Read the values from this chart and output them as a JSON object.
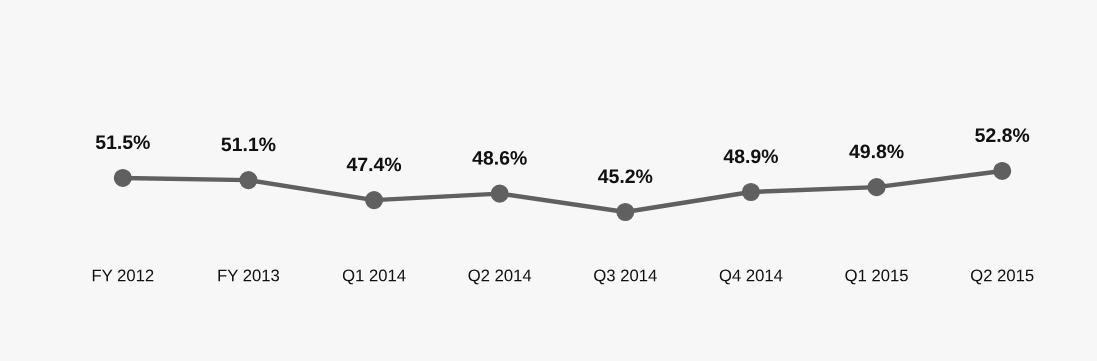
{
  "chart_data": {
    "type": "line",
    "categories": [
      "FY 2012",
      "FY 2013",
      "Q1 2014",
      "Q2 2014",
      "Q3 2014",
      "Q4 2014",
      "Q1 2015",
      "Q2 2015"
    ],
    "series": [
      {
        "color": "#606060",
        "values": [
          51.5,
          51.1,
          47.4,
          48.6,
          45.2,
          48.9,
          49.8,
          52.8
        ],
        "value_labels": [
          "51.5%",
          "51.1%",
          "47.4%",
          "48.6%",
          "45.2%",
          "48.9%",
          "49.8%",
          "52.8%"
        ]
      }
    ],
    "marker": "circle",
    "line_style": "solid",
    "grid": false,
    "legend": false
  }
}
